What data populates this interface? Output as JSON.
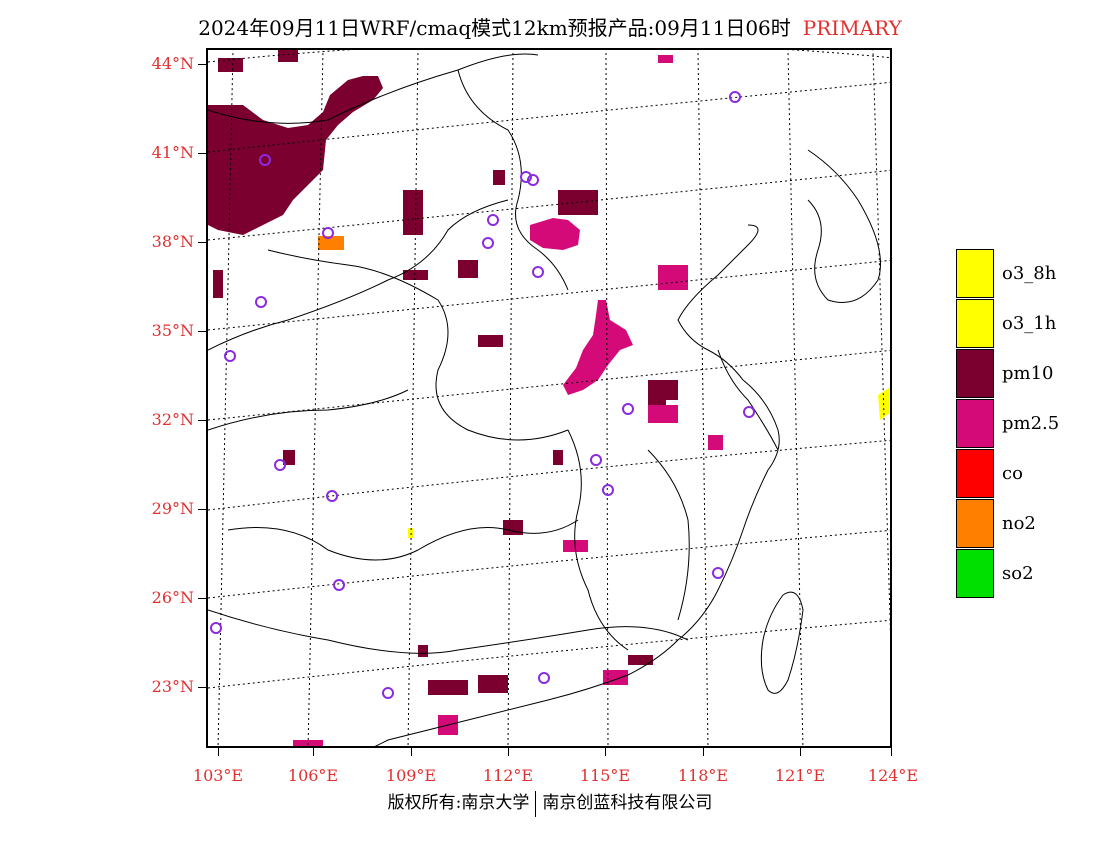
{
  "title": {
    "main": "2024年09月11日WRF/cmaq模式12km预报产品:09月11日06时",
    "tag": "PRIMARY",
    "tag_color": "#e03030"
  },
  "axes": {
    "lat_labels": [
      "44°N",
      "41°N",
      "38°N",
      "35°N",
      "32°N",
      "29°N",
      "26°N",
      "23°N"
    ],
    "lon_labels": [
      "103°E",
      "106°E",
      "109°E",
      "112°E",
      "115°E",
      "118°E",
      "121°E",
      "124°E"
    ],
    "label_color": "#e03030"
  },
  "legend": {
    "items": [
      {
        "label": "o3_8h",
        "color": "#ffff00"
      },
      {
        "label": "o3_1h",
        "color": "#ffff00"
      },
      {
        "label": "pm10",
        "color": "#7b0030"
      },
      {
        "label": "pm2.5",
        "color": "#d40a78"
      },
      {
        "label": "co",
        "color": "#ff0000"
      },
      {
        "label": "no2",
        "color": "#ff7f00"
      },
      {
        "label": "so2",
        "color": "#00e000"
      }
    ]
  },
  "footer": {
    "left": "版权所有:南京大学",
    "right": "南京创蓝科技有限公司"
  },
  "colors": {
    "pm10": "#7b0030",
    "pm25": "#d40a78",
    "no2": "#ff7f00",
    "o3": "#ffff00",
    "station": "#8a2be2"
  }
}
